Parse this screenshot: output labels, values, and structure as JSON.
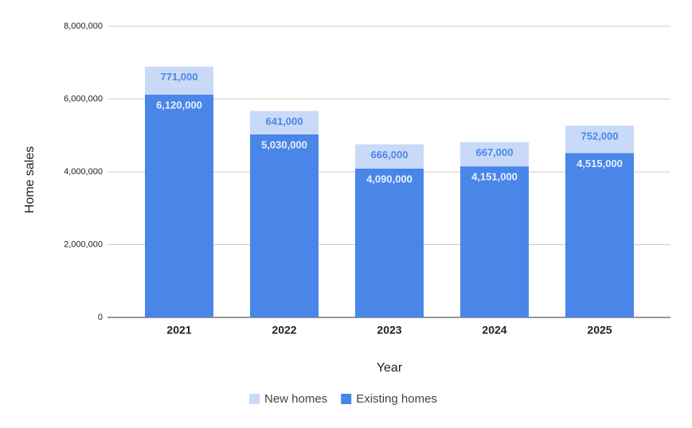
{
  "chart_data": {
    "type": "stacked_bar",
    "x_label": "Year",
    "y_label": "Home sales",
    "categories": [
      "2021",
      "2022",
      "2023",
      "2024",
      "2025"
    ],
    "series": [
      {
        "name": "Existing homes",
        "color": "#4a86e8",
        "label_color": "#e8f0fe",
        "values": [
          6120000,
          5030000,
          4090000,
          4151000,
          4515000
        ],
        "value_labels": [
          "6,120,000",
          "5,030,000",
          "4,090,000",
          "4,151,000",
          "4,515,000"
        ]
      },
      {
        "name": "New homes",
        "color": "#c9daf8",
        "label_color": "#4a86e8",
        "values": [
          771000,
          641000,
          666000,
          667000,
          752000
        ],
        "value_labels": [
          "771,000",
          "641,000",
          "666,000",
          "667,000",
          "752,000"
        ]
      }
    ],
    "ylim": [
      0,
      8000000
    ],
    "yticks": [
      0,
      {
        "value": 2000000,
        "label": "2,000,000"
      },
      {
        "value": 4000000,
        "label": "4,000,000"
      },
      {
        "value": 6000000,
        "label": "6,000,000"
      },
      {
        "value": 8000000,
        "label": "8,000,000"
      }
    ],
    "grid": true
  }
}
